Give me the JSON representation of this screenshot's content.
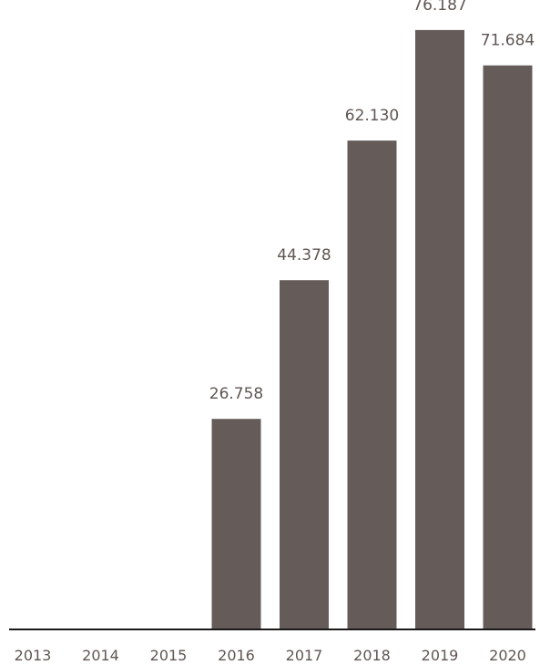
{
  "chart_data": {
    "type": "bar",
    "categories": [
      "2013",
      "2014",
      "2015",
      "2016",
      "2017",
      "2018",
      "2019",
      "2020"
    ],
    "values": [
      0,
      0,
      0,
      26758,
      44378,
      62130,
      76187,
      71684
    ],
    "value_labels": [
      "",
      "",
      "",
      "26.758",
      "44.378",
      "62.130",
      "76.187",
      "71.684"
    ],
    "ylim": [
      0,
      80000
    ],
    "grid": false,
    "bar_color": "#655c5a",
    "axis_color": "#1a1a1a",
    "text_color": "#5f5653"
  }
}
